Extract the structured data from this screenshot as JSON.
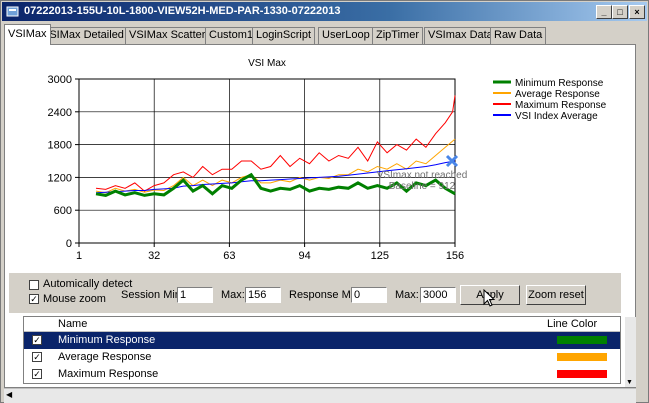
{
  "window": {
    "title": "07222013-155U-10L-1800-VIEW52H-MED-PAR-1330-07222013",
    "minimize": "_",
    "maximize": "□",
    "close": "×"
  },
  "tabs": [
    "VSIMax",
    "VSIMax Detailed",
    "VSIMax Scatter",
    "Custom1",
    "LoginScript",
    "UserLoop",
    "ZipTimer",
    "VSImax Data",
    "Raw Data"
  ],
  "chart_data": {
    "type": "line",
    "title": "VSI Max",
    "x_ticks": [
      1,
      32,
      63,
      94,
      125,
      156
    ],
    "y_ticks": [
      0,
      600,
      1200,
      1800,
      2400,
      3000
    ],
    "xlim": [
      1,
      156
    ],
    "ylim": [
      0,
      3000
    ],
    "grid": true,
    "legend_position": "top-right",
    "annotation": [
      "VSImax not reached",
      "Baseline = 912"
    ],
    "marker": {
      "x": 156,
      "y": 1500
    },
    "series": [
      {
        "name": "Minimum Response",
        "color": "#008000",
        "x": [
          8,
          12,
          16,
          20,
          24,
          28,
          32,
          36,
          40,
          44,
          48,
          52,
          56,
          60,
          64,
          68,
          72,
          76,
          80,
          84,
          88,
          92,
          96,
          100,
          104,
          108,
          112,
          116,
          120,
          124,
          128,
          132,
          136,
          140,
          144,
          148,
          152,
          156
        ],
        "y": [
          900,
          870,
          950,
          880,
          920,
          870,
          900,
          880,
          1000,
          1150,
          950,
          1050,
          900,
          1050,
          1000,
          1150,
          1250,
          1000,
          950,
          1000,
          980,
          1050,
          950,
          1000,
          980,
          1020,
          1000,
          1100,
          1000,
          1050,
          1000,
          1100,
          950,
          1100,
          1050,
          1150,
          1000,
          900
        ]
      },
      {
        "name": "Average Response",
        "color": "#ffa500",
        "x": [
          8,
          12,
          16,
          20,
          24,
          28,
          32,
          36,
          40,
          44,
          48,
          52,
          56,
          60,
          64,
          68,
          72,
          76,
          80,
          84,
          88,
          92,
          96,
          100,
          104,
          108,
          112,
          116,
          120,
          124,
          128,
          132,
          136,
          140,
          144,
          148,
          152,
          156
        ],
        "y": [
          950,
          920,
          1000,
          950,
          980,
          930,
          970,
          960,
          1050,
          1200,
          1050,
          1150,
          1050,
          1150,
          1100,
          1200,
          1250,
          1100,
          1100,
          1150,
          1120,
          1200,
          1150,
          1200,
          1180,
          1250,
          1250,
          1350,
          1300,
          1400,
          1350,
          1450,
          1350,
          1500,
          1450,
          1600,
          1750,
          1900
        ]
      },
      {
        "name": "Maximum Response",
        "color": "#ff0000",
        "x": [
          8,
          12,
          16,
          20,
          24,
          28,
          32,
          36,
          40,
          44,
          48,
          52,
          56,
          60,
          64,
          68,
          72,
          76,
          80,
          84,
          88,
          92,
          96,
          100,
          104,
          108,
          112,
          116,
          120,
          124,
          128,
          132,
          136,
          140,
          144,
          148,
          152,
          155,
          156
        ],
        "y": [
          1000,
          980,
          1050,
          1000,
          1100,
          950,
          1050,
          1100,
          1250,
          1300,
          1200,
          1400,
          1250,
          1350,
          1350,
          1500,
          1500,
          1350,
          1400,
          1600,
          1400,
          1550,
          1450,
          1650,
          1500,
          1600,
          1550,
          1750,
          1500,
          1850,
          1650,
          1800,
          1700,
          1900,
          1750,
          2000,
          2200,
          2400,
          2700
        ]
      },
      {
        "name": "VSI Index Average",
        "color": "#0000ff",
        "x": [
          8,
          12,
          16,
          20,
          24,
          28,
          32,
          36,
          40,
          44,
          48,
          52,
          56,
          60,
          64,
          68,
          72,
          76,
          80,
          84,
          88,
          92,
          96,
          100,
          104,
          108,
          112,
          116,
          120,
          124,
          128,
          132,
          136,
          140,
          144,
          148,
          152,
          156
        ],
        "y": [
          920,
          930,
          940,
          950,
          960,
          960,
          980,
          990,
          1000,
          1040,
          1050,
          1070,
          1080,
          1090,
          1100,
          1120,
          1140,
          1140,
          1150,
          1160,
          1170,
          1180,
          1190,
          1200,
          1210,
          1220,
          1240,
          1260,
          1280,
          1300,
          1320,
          1340,
          1360,
          1380,
          1400,
          1430,
          1470,
          1500
        ]
      }
    ]
  },
  "controls": {
    "auto_detect_label": "Automically detect",
    "mouse_zoom_label": "Mouse zoom",
    "auto_detect_checked": false,
    "mouse_zoom_checked": true,
    "session_min_label": "Session Min:",
    "session_min_value": "1",
    "session_max_label": "Max:",
    "session_max_value": "156",
    "response_min_label": "Response Min:",
    "response_min_value": "0",
    "response_max_label": "Max:",
    "response_max_value": "3000",
    "apply_label": "Apply",
    "zoom_reset_label": "Zoom reset"
  },
  "legend_table": {
    "col_name": "Name",
    "col_color": "Line Color",
    "rows": [
      {
        "name": "Minimum Response",
        "color": "#008000",
        "checked": true,
        "selected": true
      },
      {
        "name": "Average Response",
        "color": "#ffa500",
        "checked": true,
        "selected": false
      },
      {
        "name": "Maximum Response",
        "color": "#ff0000",
        "checked": true,
        "selected": false
      }
    ]
  }
}
